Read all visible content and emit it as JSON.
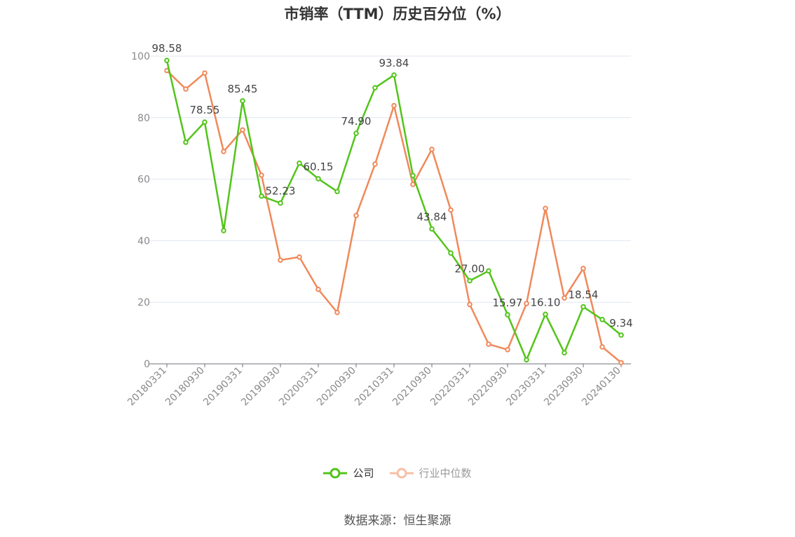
{
  "chart_data": {
    "type": "line",
    "title": "市销率（TTM）历史百分位（%）",
    "xlabel": "",
    "ylabel": "",
    "ylim": [
      0,
      100
    ],
    "yticks": [
      0,
      20,
      40,
      60,
      80,
      100
    ],
    "grid": true,
    "legend_position": "bottom",
    "x": [
      "20180331",
      "20180630",
      "20180930",
      "20181231",
      "20190331",
      "20190630",
      "20190930",
      "20191231",
      "20200331",
      "20200630",
      "20200930",
      "20201231",
      "20210331",
      "20210630",
      "20210930",
      "20211231",
      "20220331",
      "20220630",
      "20220930",
      "20221231",
      "20230331",
      "20230630",
      "20230930",
      "20231231",
      "20240130"
    ],
    "xtick_labels": [
      "20180331",
      "20180930",
      "20190331",
      "20190930",
      "20200331",
      "20200930",
      "20210331",
      "20210930",
      "20220331",
      "20220930",
      "20230331",
      "20230930",
      "20240130"
    ],
    "series": [
      {
        "name": "公司",
        "color": "#52c41a",
        "values": [
          98.58,
          72.0,
          78.55,
          43.3,
          85.45,
          54.5,
          52.23,
          65.2,
          60.15,
          56.0,
          74.9,
          89.7,
          93.84,
          61.2,
          43.84,
          36.0,
          27.0,
          30.2,
          15.97,
          1.3,
          16.1,
          3.6,
          18.54,
          14.4,
          9.34
        ],
        "labels": {
          "0": "98.58",
          "2": "78.55",
          "4": "85.45",
          "6": "52.23",
          "8": "60.15",
          "10": "74.90",
          "12": "93.84",
          "14": "43.84",
          "16": "27.00",
          "18": "15.97",
          "20": "16.10",
          "22": "18.54",
          "24": "9.34"
        }
      },
      {
        "name": "行业中位数",
        "color": "#f0895a",
        "values": [
          95.3,
          89.3,
          94.5,
          69.0,
          76.0,
          61.3,
          33.7,
          34.7,
          24.2,
          16.7,
          48.2,
          64.9,
          83.9,
          58.3,
          69.7,
          50.0,
          19.3,
          6.4,
          4.6,
          19.6,
          50.5,
          21.4,
          31.0,
          5.5,
          0.4
        ]
      }
    ]
  },
  "source": "数据来源：恒生聚源"
}
